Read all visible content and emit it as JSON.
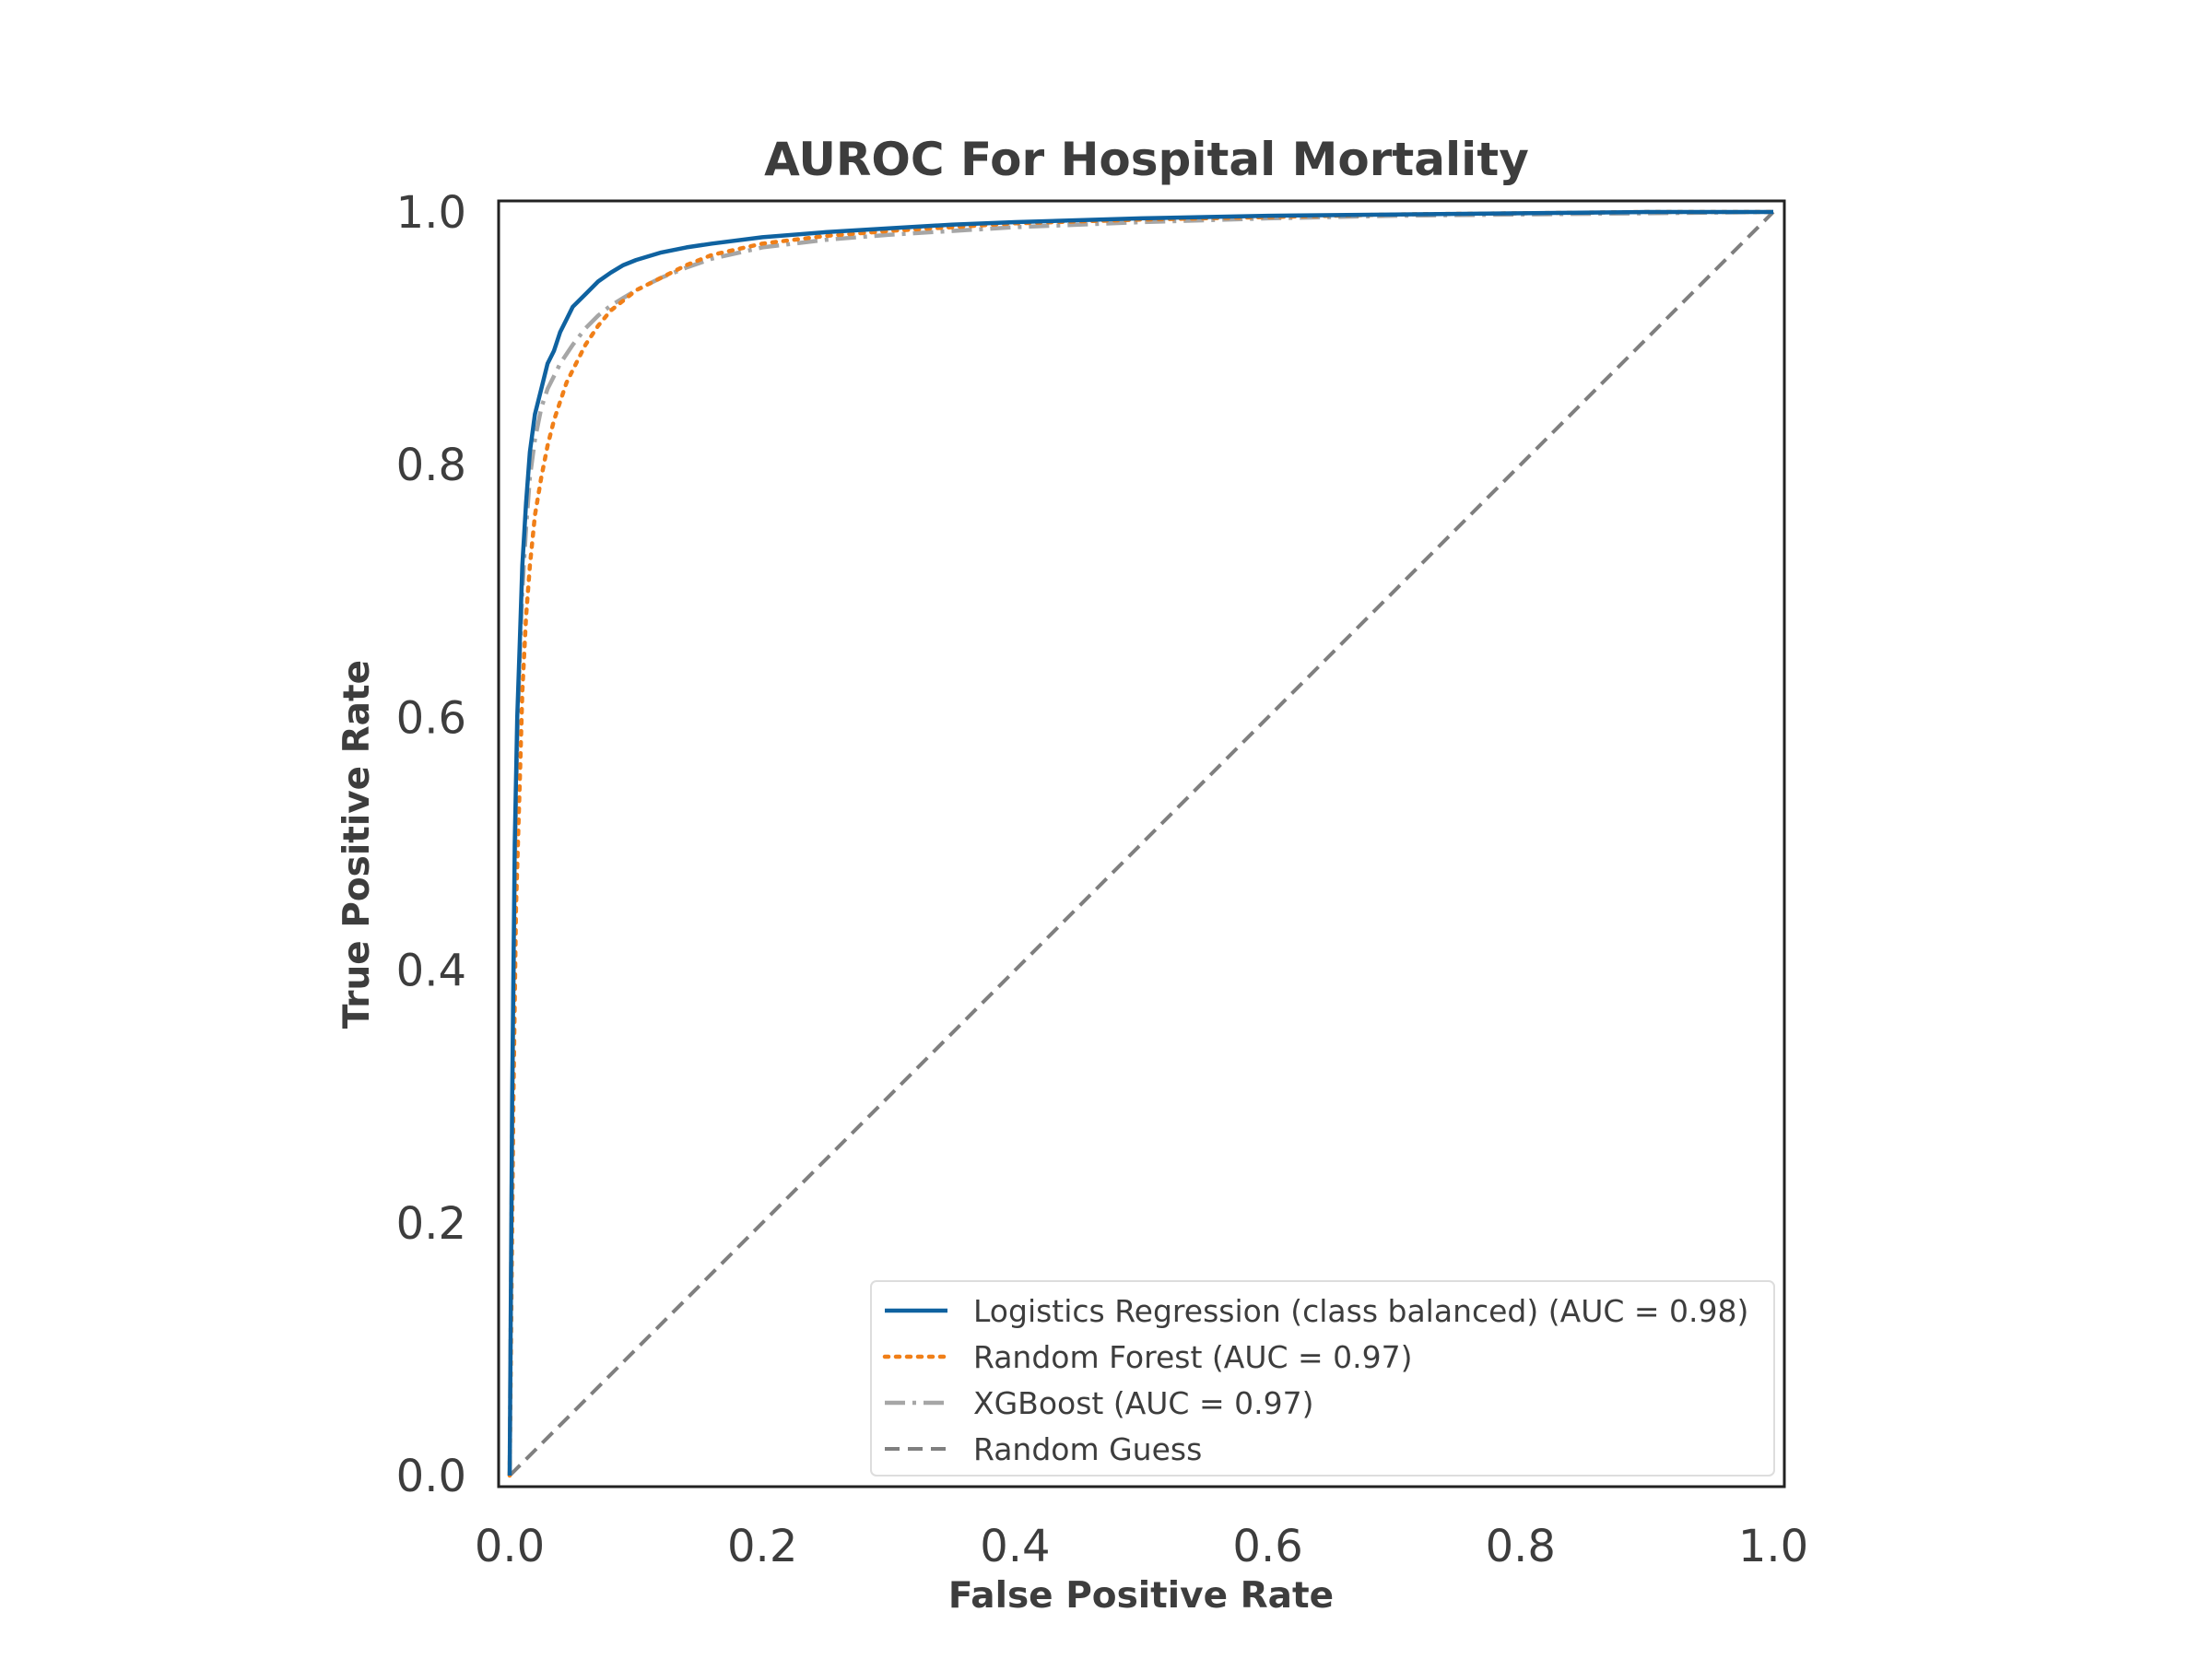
{
  "chart_data": {
    "type": "line",
    "title": "AUROC For Hospital Mortality",
    "xlabel": "False Positive Rate",
    "ylabel": "True Positive Rate",
    "xlim": [
      0.0,
      1.0
    ],
    "ylim": [
      0.0,
      1.0
    ],
    "xticks": [
      "0.0",
      "0.2",
      "0.4",
      "0.6",
      "0.8",
      "1.0"
    ],
    "yticks": [
      "0.0",
      "0.2",
      "0.4",
      "0.6",
      "0.8",
      "1.0"
    ],
    "grid": false,
    "legend_position": "lower-right",
    "series": [
      {
        "name": "Logistics Regression (class balanced) (AUC = 0.98)",
        "color": "#0f62a0",
        "style": "solid",
        "x": [
          0.0,
          0.002,
          0.004,
          0.006,
          0.008,
          0.01,
          0.013,
          0.016,
          0.02,
          0.025,
          0.03,
          0.035,
          0.04,
          0.045,
          0.05,
          0.06,
          0.07,
          0.08,
          0.09,
          0.1,
          0.12,
          0.14,
          0.16,
          0.2,
          0.25,
          0.3,
          0.35,
          0.4,
          0.5,
          0.6,
          0.7,
          0.8,
          0.9,
          1.0
        ],
        "y": [
          0.0,
          0.3,
          0.5,
          0.6,
          0.66,
          0.72,
          0.77,
          0.81,
          0.84,
          0.86,
          0.88,
          0.89,
          0.905,
          0.915,
          0.925,
          0.935,
          0.945,
          0.952,
          0.958,
          0.962,
          0.968,
          0.972,
          0.975,
          0.98,
          0.984,
          0.987,
          0.99,
          0.992,
          0.995,
          0.997,
          0.998,
          0.999,
          1.0,
          1.0
        ]
      },
      {
        "name": "Random Forest (AUC = 0.97)",
        "color": "#f07f18",
        "style": "dotted",
        "x": [
          0.0,
          0.003,
          0.005,
          0.008,
          0.01,
          0.013,
          0.016,
          0.02,
          0.025,
          0.03,
          0.035,
          0.04,
          0.045,
          0.05,
          0.06,
          0.07,
          0.08,
          0.09,
          0.1,
          0.12,
          0.14,
          0.16,
          0.2,
          0.25,
          0.3,
          0.35,
          0.4,
          0.5,
          0.6,
          0.7,
          0.8,
          0.9,
          1.0
        ],
        "y": [
          0.0,
          0.3,
          0.45,
          0.55,
          0.62,
          0.68,
          0.72,
          0.76,
          0.79,
          0.815,
          0.835,
          0.85,
          0.865,
          0.875,
          0.895,
          0.91,
          0.922,
          0.93,
          0.938,
          0.948,
          0.958,
          0.966,
          0.975,
          0.981,
          0.985,
          0.988,
          0.991,
          0.994,
          0.996,
          0.998,
          0.999,
          1.0,
          1.0
        ]
      },
      {
        "name": "XGBoost (AUC = 0.97)",
        "color": "#a6a6a6",
        "style": "dashdot",
        "x": [
          0.0,
          0.002,
          0.004,
          0.006,
          0.008,
          0.01,
          0.013,
          0.016,
          0.02,
          0.025,
          0.03,
          0.035,
          0.04,
          0.05,
          0.06,
          0.07,
          0.08,
          0.09,
          0.1,
          0.12,
          0.14,
          0.16,
          0.2,
          0.25,
          0.3,
          0.35,
          0.4,
          0.5,
          0.6,
          0.7,
          0.8,
          0.9,
          1.0
        ],
        "y": [
          0.0,
          0.28,
          0.48,
          0.58,
          0.65,
          0.7,
          0.75,
          0.79,
          0.82,
          0.845,
          0.86,
          0.87,
          0.88,
          0.895,
          0.908,
          0.918,
          0.926,
          0.932,
          0.938,
          0.948,
          0.956,
          0.963,
          0.972,
          0.978,
          0.982,
          0.985,
          0.988,
          0.992,
          0.995,
          0.997,
          0.998,
          0.999,
          1.0
        ]
      },
      {
        "name": "Random Guess",
        "color": "#7f7f7f",
        "style": "dashed",
        "x": [
          0.0,
          1.0
        ],
        "y": [
          0.0,
          1.0
        ]
      }
    ]
  }
}
